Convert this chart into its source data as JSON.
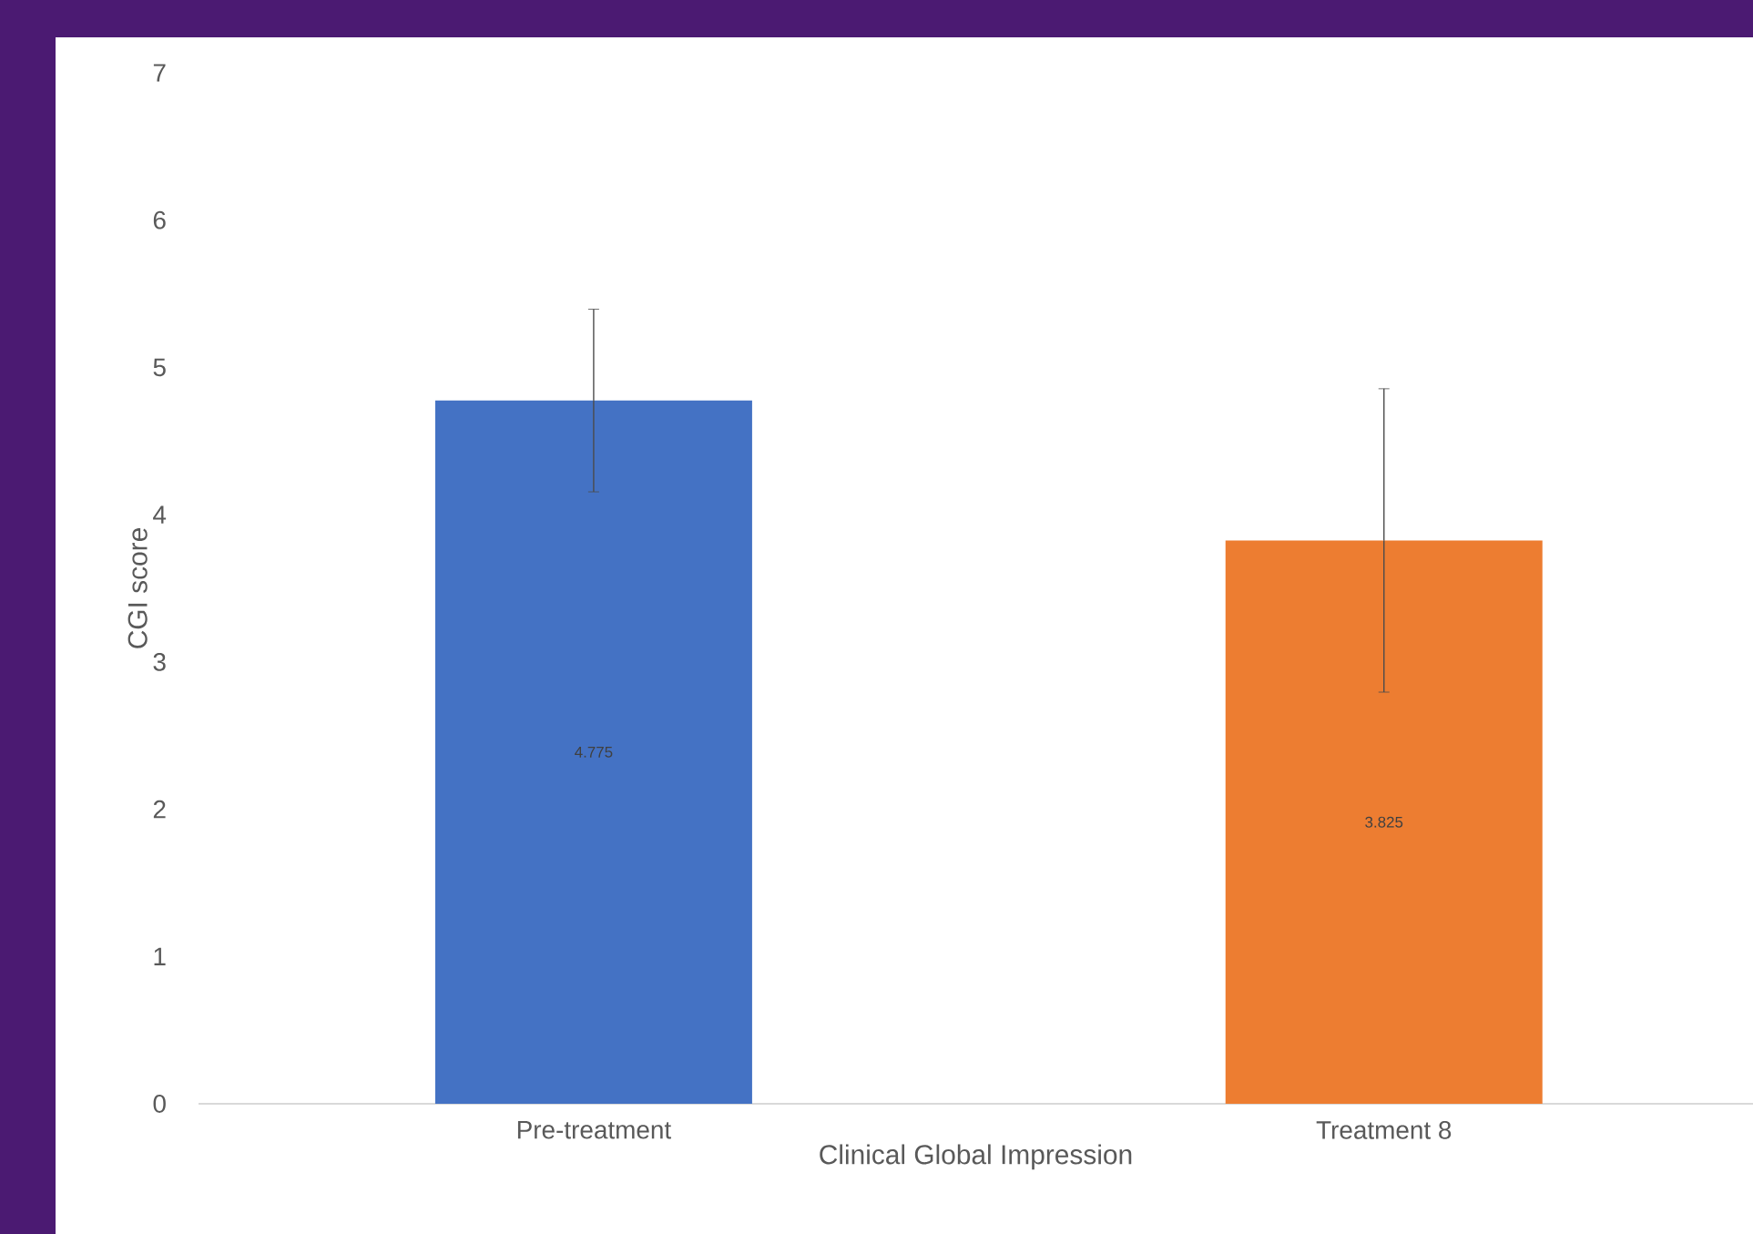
{
  "chart_data": {
    "type": "bar",
    "xlabel": "Clinical Global Impression",
    "ylabel": "CGI score",
    "categories": [
      "Pre-treatment",
      "Treatment 8"
    ],
    "values": [
      4.775,
      3.825
    ],
    "colors": [
      "#4472c4",
      "#ed7d31"
    ],
    "errors": [
      0.62,
      1.03
    ],
    "value_labels": [
      "4.775",
      "3.825"
    ],
    "ylim": [
      0,
      7
    ],
    "yticks": [
      0,
      1,
      2,
      3,
      4,
      5,
      6,
      7
    ]
  }
}
